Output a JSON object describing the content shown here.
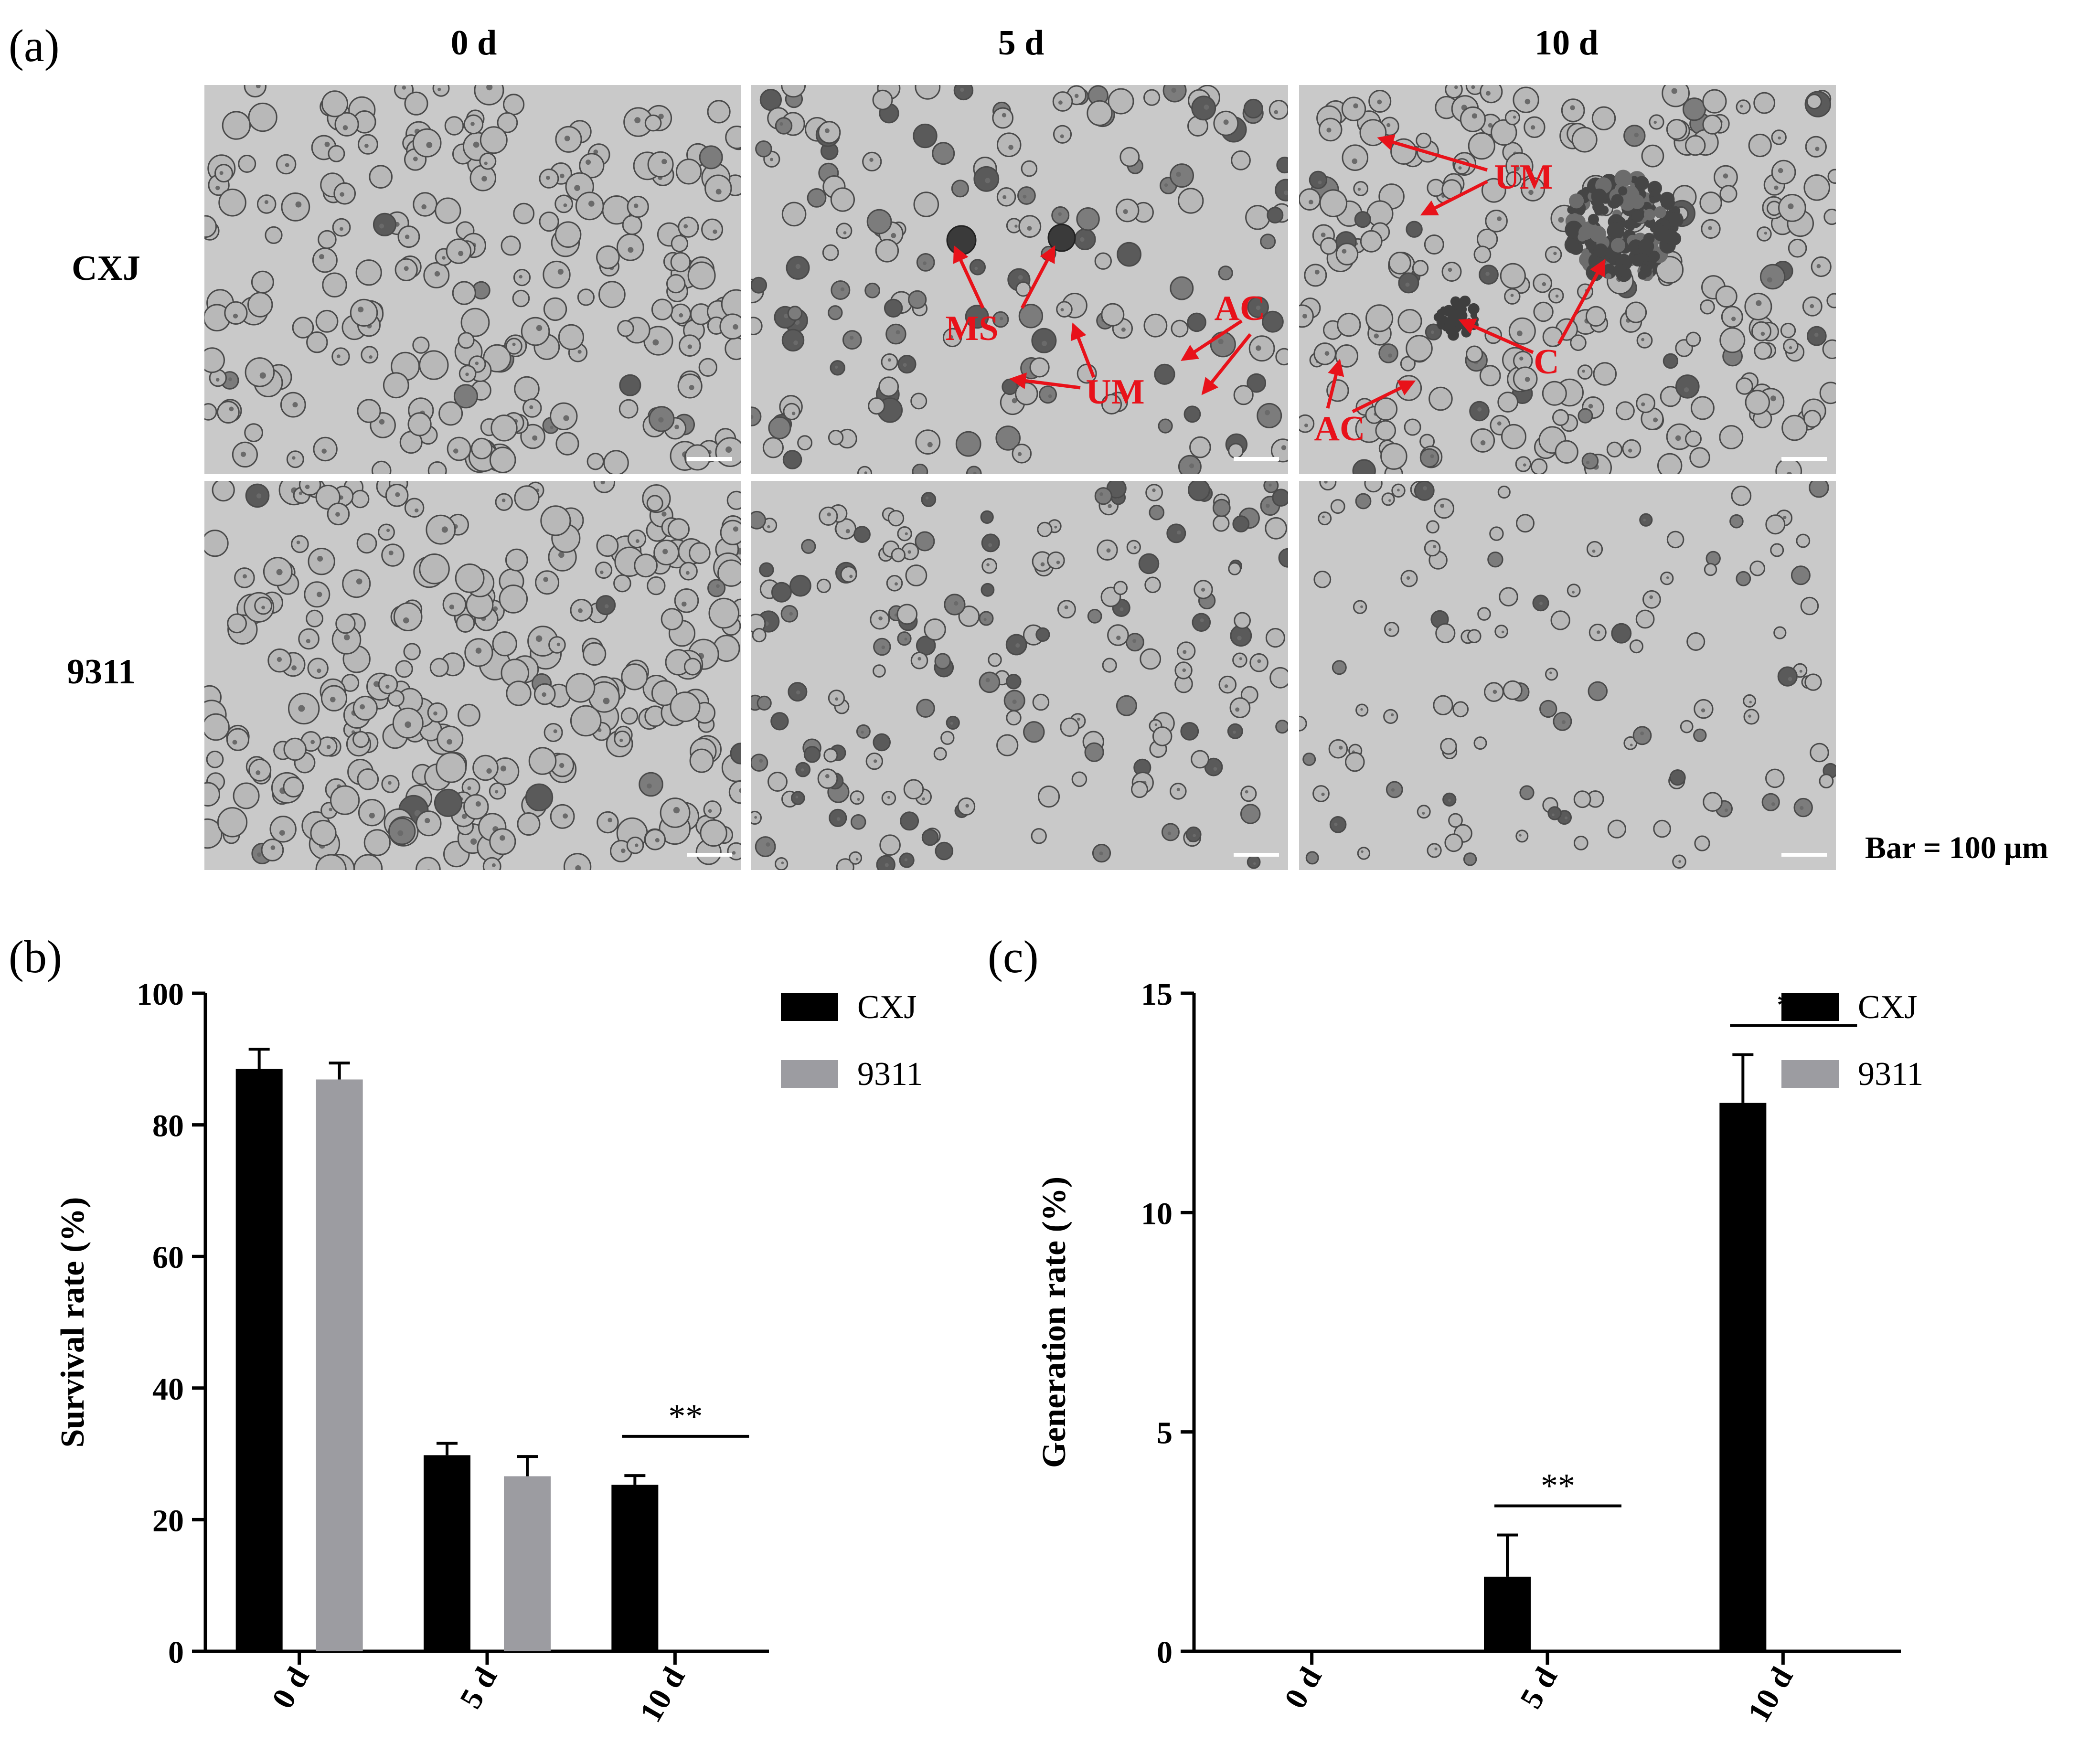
{
  "panel_labels": {
    "a": "(a)",
    "b": "(b)",
    "c": "(c)"
  },
  "micrographs": {
    "columns": [
      "0 d",
      "5 d",
      "10 d"
    ],
    "rows": [
      "CXJ",
      "9311"
    ],
    "scale_bar_label": "Bar = 100 μm",
    "annotations": {
      "cxj_5d": [
        "MS",
        "UM",
        "AC"
      ],
      "cxj_10d": [
        "UM",
        "C",
        "AC"
      ]
    },
    "annotation_color": "#e8121a",
    "image_background": "#c8c8c8"
  },
  "chart_data": [
    {
      "type": "bar",
      "panel": "(b)",
      "categories": [
        "0 d",
        "5 d",
        "10 d"
      ],
      "series": [
        {
          "name": "CXJ",
          "color": "#000000",
          "values": [
            88.5,
            29.8,
            25.3
          ],
          "errors": [
            3.0,
            1.8,
            1.4
          ]
        },
        {
          "name": "9311",
          "color": "#9c9ca1",
          "values": [
            86.9,
            26.6,
            0
          ],
          "errors": [
            2.5,
            3.0,
            0
          ]
        }
      ],
      "ylabel": "Survival rate (%)",
      "ylim": [
        0,
        100
      ],
      "yticks": [
        0,
        20,
        40,
        60,
        80,
        100
      ],
      "legend": "top-right",
      "significance": [
        {
          "category": "10 d",
          "label": "**"
        }
      ]
    },
    {
      "type": "bar",
      "panel": "(c)",
      "categories": [
        "0 d",
        "5 d",
        "10 d"
      ],
      "series": [
        {
          "name": "CXJ",
          "color": "#000000",
          "values": [
            0,
            1.7,
            12.5
          ],
          "errors": [
            0,
            0.95,
            1.1
          ]
        },
        {
          "name": "9311",
          "color": "#9c9ca1",
          "values": [
            0,
            0,
            0
          ],
          "errors": [
            0,
            0,
            0
          ]
        }
      ],
      "ylabel": "Generation  rate (%)",
      "ylim": [
        0,
        15
      ],
      "yticks": [
        0,
        5,
        10,
        15
      ],
      "legend": "top-right",
      "significance": [
        {
          "category": "5 d",
          "label": "**"
        },
        {
          "category": "10 d",
          "label": "**"
        }
      ]
    }
  ]
}
